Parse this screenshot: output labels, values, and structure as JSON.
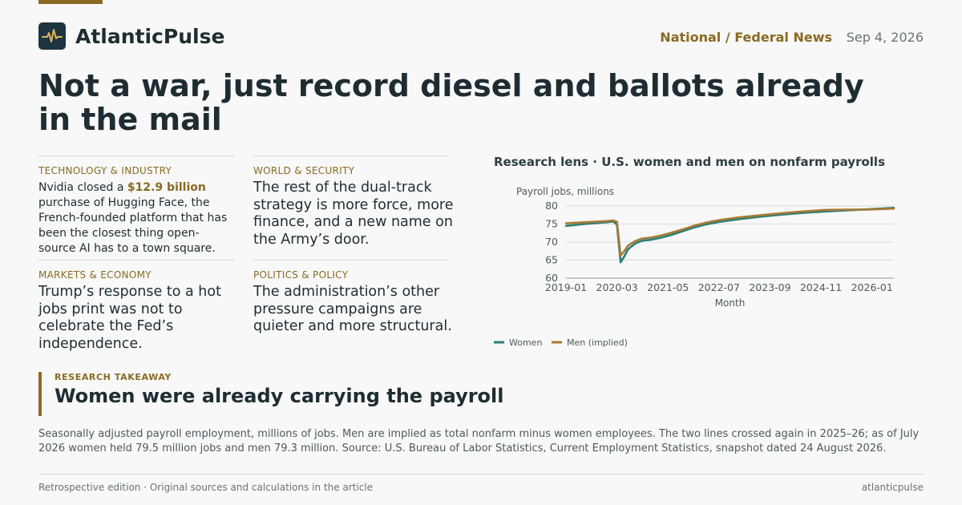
{
  "brand": {
    "name": "AtlanticPulse",
    "mark_icon": "pulse-icon"
  },
  "header": {
    "section": "National / Federal News",
    "date": "Sep 4, 2026"
  },
  "headline": "Not a war, just record diesel and ballots already in the mail",
  "cards": [
    {
      "kicker": "TECHNOLOGY & INDUSTRY",
      "text_before": "Nvidia closed a ",
      "highlight": "$12.9 billion",
      "text_after": " purchase of Hugging Face, the French-founded platform that has been the closest thing open-source AI has to a town square."
    },
    {
      "kicker": "WORLD & SECURITY",
      "text": "The rest of the dual-track strategy is more force, more finance, and a new name on the Army’s door."
    },
    {
      "kicker": "MARKETS & ECONOMY",
      "text": "Trump’s response to a hot jobs print was not to celebrate the Fed’s independence."
    },
    {
      "kicker": "POLITICS & POLICY",
      "text": "The administration’s other pressure campaigns are quieter and more structural."
    }
  ],
  "chart_data": {
    "type": "line",
    "title": "Research lens · U.S. women and men on nonfarm payrolls",
    "ylabel": "Payroll jobs, millions",
    "xlabel": "Month",
    "ylim": [
      60,
      82
    ],
    "yticks": [
      60,
      65,
      70,
      75,
      80
    ],
    "xticks": [
      "2019-01",
      "2020-03",
      "2021-05",
      "2022-07",
      "2023-09",
      "2024-11",
      "2026-01"
    ],
    "grid": "horizontal",
    "legend": "bottom-left",
    "x_range": [
      "2019-01",
      "2026-07"
    ],
    "series": [
      {
        "name": "Women",
        "color": "#2a7f78",
        "points": [
          [
            "2019-01",
            74.5
          ],
          [
            "2019-06",
            75.0
          ],
          [
            "2019-12",
            75.5
          ],
          [
            "2020-02",
            75.7
          ],
          [
            "2020-03",
            74.8
          ],
          [
            "2020-04",
            64.4
          ],
          [
            "2020-05",
            66.0
          ],
          [
            "2020-06",
            68.0
          ],
          [
            "2020-08",
            69.6
          ],
          [
            "2020-10",
            70.4
          ],
          [
            "2020-12",
            70.6
          ],
          [
            "2021-03",
            71.2
          ],
          [
            "2021-06",
            72.0
          ],
          [
            "2021-09",
            73.0
          ],
          [
            "2021-12",
            74.0
          ],
          [
            "2022-03",
            74.8
          ],
          [
            "2022-07",
            75.6
          ],
          [
            "2022-12",
            76.3
          ],
          [
            "2023-06",
            77.0
          ],
          [
            "2023-12",
            77.6
          ],
          [
            "2024-06",
            78.1
          ],
          [
            "2024-12",
            78.5
          ],
          [
            "2025-06",
            78.8
          ],
          [
            "2025-12",
            79.1
          ],
          [
            "2026-07",
            79.5
          ]
        ]
      },
      {
        "name": "Men (implied)",
        "color": "#a87a35",
        "points": [
          [
            "2019-01",
            75.2
          ],
          [
            "2019-06",
            75.5
          ],
          [
            "2019-12",
            75.8
          ],
          [
            "2020-02",
            76.0
          ],
          [
            "2020-03",
            75.6
          ],
          [
            "2020-04",
            66.3
          ],
          [
            "2020-05",
            67.5
          ],
          [
            "2020-06",
            69.0
          ],
          [
            "2020-08",
            70.3
          ],
          [
            "2020-10",
            71.0
          ],
          [
            "2020-12",
            71.2
          ],
          [
            "2021-03",
            71.8
          ],
          [
            "2021-06",
            72.6
          ],
          [
            "2021-09",
            73.5
          ],
          [
            "2021-12",
            74.5
          ],
          [
            "2022-03",
            75.3
          ],
          [
            "2022-07",
            76.1
          ],
          [
            "2022-12",
            76.8
          ],
          [
            "2023-06",
            77.4
          ],
          [
            "2023-12",
            78.0
          ],
          [
            "2024-06",
            78.5
          ],
          [
            "2024-12",
            78.9
          ],
          [
            "2025-06",
            79.0
          ],
          [
            "2025-12",
            79.0
          ],
          [
            "2026-07",
            79.3
          ]
        ]
      }
    ]
  },
  "takeaway": {
    "kicker": "RESEARCH TAKEAWAY",
    "title": "Women were already carrying the payroll"
  },
  "note": "Seasonally adjusted payroll employment, millions of jobs. Men are implied as total nonfarm minus women employees. The two lines crossed again in 2025–26; as of July 2026 women held 79.5 million jobs and men 79.3 million. Source: U.S. Bureau of Labor Statistics, Current Employment Statistics, snapshot dated 24 August 2026.",
  "footer": {
    "left": "Retrospective edition · Original sources and calculations in the article",
    "right": "atlanticpulse"
  },
  "colors": {
    "accent": "#8a6a24",
    "ink": "#1f2d33",
    "logo_bg": "#1e3440"
  }
}
